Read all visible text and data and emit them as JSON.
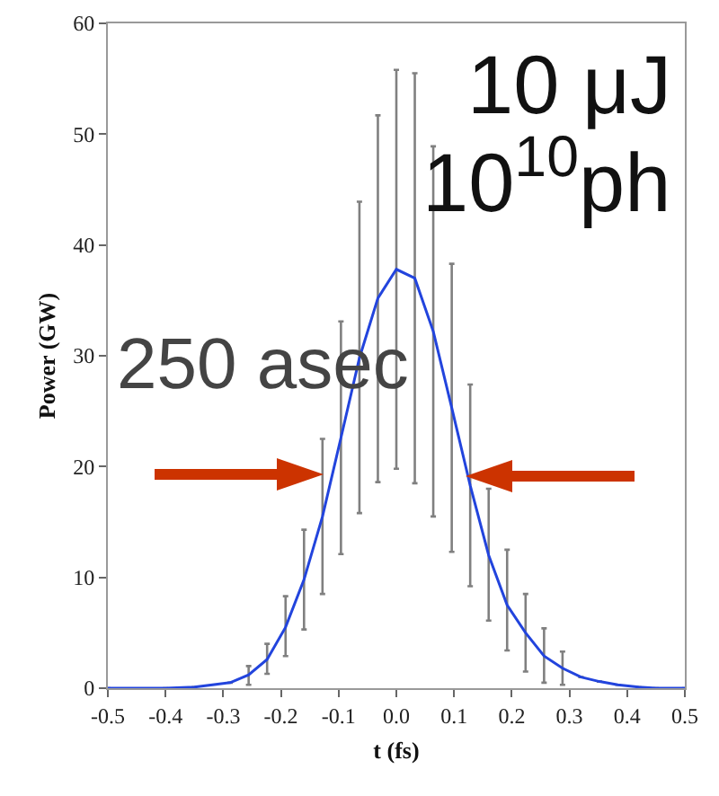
{
  "chart_data": {
    "type": "line",
    "xlabel": "t (fs)",
    "ylabel": "Power (GW)",
    "x": [
      -0.5,
      -0.4,
      -0.35,
      -0.288,
      -0.256,
      -0.224,
      -0.192,
      -0.16,
      -0.128,
      -0.096,
      -0.064,
      -0.032,
      0,
      0.032,
      0.064,
      0.096,
      0.128,
      0.16,
      0.192,
      0.224,
      0.256,
      0.288,
      0.32,
      0.352,
      0.384,
      0.42,
      0.45,
      0.5
    ],
    "series": [
      {
        "color": "#2244dd",
        "values": [
          0,
          0,
          0.1,
          0.5,
          1.2,
          2.6,
          5.5,
          9.8,
          15.5,
          22.6,
          29.8,
          35.2,
          37.8,
          37,
          32.2,
          25.3,
          18.3,
          12,
          7.5,
          5,
          2.9,
          1.8,
          1,
          0.6,
          0.3,
          0.1,
          0,
          0
        ],
        "errors": [
          null,
          null,
          null,
          null,
          [
            0.3,
            2
          ],
          [
            1.3,
            4
          ],
          [
            2.9,
            8.3
          ],
          [
            5.3,
            14.3
          ],
          [
            8.5,
            22.5
          ],
          [
            12.1,
            33.1
          ],
          [
            15.8,
            43.9
          ],
          [
            18.6,
            51.7
          ],
          [
            19.8,
            55.8
          ],
          [
            18.5,
            55.5
          ],
          [
            15.5,
            48.9
          ],
          [
            12.3,
            38.3
          ],
          [
            9.2,
            27.4
          ],
          [
            6.1,
            18
          ],
          [
            3.4,
            12.5
          ],
          [
            1.5,
            8.5
          ],
          [
            0.5,
            5.4
          ],
          [
            0.3,
            3.3
          ],
          null,
          null,
          null,
          null,
          null,
          null
        ]
      }
    ],
    "xlim": [
      -0.5,
      0.5
    ],
    "xticks": [
      -0.5,
      -0.4,
      -0.3,
      -0.2,
      -0.1,
      {
        "value": 0,
        "label": "0.0"
      },
      0.1,
      0.2,
      0.3,
      0.4,
      0.5
    ],
    "ylim": [
      0,
      60
    ],
    "yticks": [
      0,
      10,
      20,
      30,
      40,
      50,
      60
    ],
    "annotations": [
      "10 μJ",
      "10$^{10}$ph",
      "250 asec"
    ],
    "grid": false,
    "marker": "none",
    "line_style": "solid"
  }
}
